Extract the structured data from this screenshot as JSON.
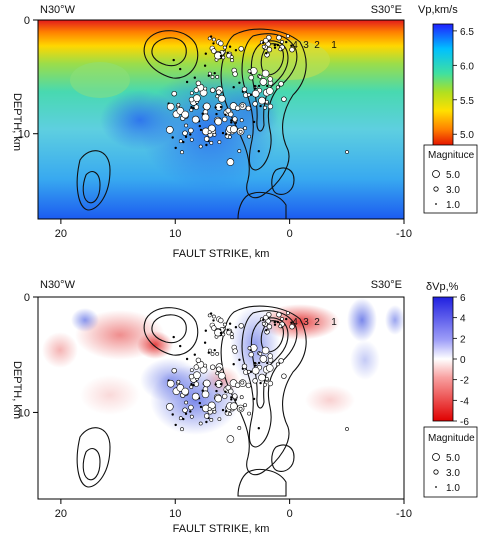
{
  "chart_data": [
    {
      "type": "heatmap",
      "corner_left": "N30°W",
      "corner_right": "S30°E",
      "xlabel": "FAULT STRIKE, km",
      "ylabel": "DEPTH, km",
      "xlim": [
        22,
        -10
      ],
      "ylim": [
        0,
        17.5
      ],
      "x_ticks": [
        20,
        10,
        0,
        -10
      ],
      "y_ticks": [
        0,
        10
      ],
      "colorbar": {
        "title": "Vp,km/s",
        "ticks": [
          6.5,
          6.0,
          5.5,
          5.0
        ],
        "range": [
          4.8,
          6.6
        ],
        "tick_labels": [
          "6.5",
          "6.0",
          "5.5",
          "5.0"
        ]
      },
      "contour_labels": [
        "4",
        "3",
        "2",
        "1"
      ],
      "legend": {
        "title": "Magnituce",
        "entries": [
          "5.0",
          "3.0",
          "1.0"
        ],
        "placement": "right"
      }
    },
    {
      "type": "heatmap",
      "corner_left": "N30°W",
      "corner_right": "S30°E",
      "xlabel": "FAULT STRIKE, km",
      "ylabel": "DEPTH, km",
      "xlim": [
        22,
        -10
      ],
      "ylim": [
        0,
        17.5
      ],
      "x_ticks": [
        20,
        10,
        0,
        -10
      ],
      "y_ticks": [
        0,
        10
      ],
      "colorbar": {
        "title": "δVp,%",
        "ticks": [
          6,
          4,
          2,
          0,
          -2,
          -4,
          -6
        ],
        "range": [
          -6,
          6
        ],
        "tick_labels": [
          "6",
          "4",
          "2",
          "0",
          "-2",
          "-4",
          "-6"
        ]
      },
      "contour_labels": [
        "4",
        "3",
        "2",
        "1"
      ],
      "legend": {
        "title": "Magnitude",
        "entries": [
          "5.0",
          "3.0",
          "1.0"
        ],
        "placement": "right"
      }
    }
  ]
}
